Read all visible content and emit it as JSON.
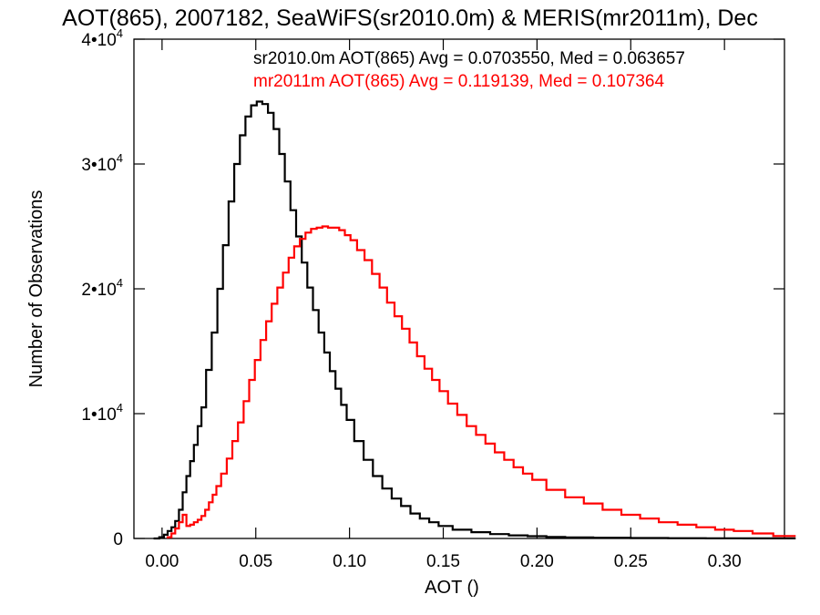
{
  "chart_data": {
    "type": "line",
    "title": "AOT(865), 2007182, SeaWiFS(sr2010.0m) & MERIS(mr2011m), Dec",
    "xlabel": "AOT ()",
    "ylabel": "Number of Observations",
    "xlim": [
      -0.015,
      0.332
    ],
    "ylim": [
      0,
      40000
    ],
    "x_ticks": [
      0.0,
      0.05,
      0.1,
      0.15,
      0.2,
      0.25,
      0.3
    ],
    "x_tick_labels": [
      "0.00",
      "0.05",
      "0.10",
      "0.15",
      "0.20",
      "0.25",
      "0.30"
    ],
    "y_ticks": [
      0,
      10000,
      20000,
      30000,
      40000
    ],
    "y_tick_labels": [
      {
        "base": "0",
        "exp": ""
      },
      {
        "base": "1•10",
        "exp": "4"
      },
      {
        "base": "2•10",
        "exp": "4"
      },
      {
        "base": "3•10",
        "exp": "4"
      },
      {
        "base": "4•10",
        "exp": "4"
      }
    ],
    "grid": false,
    "step": true,
    "series": [
      {
        "name": "sr2010.0m",
        "color": "#000000",
        "stat_label": "sr2010.0m AOT(865) Avg = 0.0703550, Med = 0.063657",
        "x": [
          -0.003,
          0.0,
          0.002,
          0.004,
          0.006,
          0.008,
          0.01,
          0.012,
          0.014,
          0.016,
          0.018,
          0.02,
          0.022,
          0.025,
          0.028,
          0.031,
          0.034,
          0.037,
          0.04,
          0.043,
          0.046,
          0.049,
          0.052,
          0.055,
          0.058,
          0.061,
          0.064,
          0.067,
          0.07,
          0.073,
          0.076,
          0.079,
          0.082,
          0.085,
          0.088,
          0.091,
          0.094,
          0.097,
          0.1,
          0.105,
          0.11,
          0.115,
          0.12,
          0.125,
          0.13,
          0.135,
          0.14,
          0.145,
          0.15,
          0.16,
          0.17,
          0.18,
          0.19,
          0.2,
          0.21,
          0.22,
          0.24,
          0.26,
          0.28,
          0.3,
          0.32,
          0.332
        ],
        "values": [
          0,
          100,
          300,
          600,
          900,
          1400,
          2300,
          3700,
          5000,
          6200,
          7500,
          9000,
          10500,
          13500,
          16500,
          20000,
          23500,
          27000,
          30000,
          32300,
          33800,
          34700,
          35000,
          34800,
          34100,
          32800,
          30800,
          28600,
          26300,
          24200,
          22100,
          20100,
          18300,
          16500,
          14900,
          13400,
          12000,
          10700,
          9500,
          7800,
          6300,
          5000,
          4000,
          3200,
          2600,
          2000,
          1600,
          1300,
          1000,
          700,
          500,
          350,
          250,
          180,
          120,
          90,
          60,
          40,
          25,
          15,
          10,
          5
        ]
      },
      {
        "name": "mr2011m",
        "color": "#ff0000",
        "stat_label": "mr2011m AOT(865) Avg = 0.119139, Med = 0.107364",
        "x": [
          0.004,
          0.006,
          0.008,
          0.01,
          0.012,
          0.014,
          0.016,
          0.018,
          0.02,
          0.022,
          0.024,
          0.026,
          0.028,
          0.03,
          0.033,
          0.036,
          0.039,
          0.042,
          0.045,
          0.048,
          0.051,
          0.054,
          0.057,
          0.06,
          0.063,
          0.066,
          0.069,
          0.072,
          0.075,
          0.078,
          0.081,
          0.084,
          0.087,
          0.09,
          0.093,
          0.096,
          0.099,
          0.102,
          0.106,
          0.11,
          0.114,
          0.118,
          0.122,
          0.126,
          0.13,
          0.134,
          0.138,
          0.142,
          0.146,
          0.15,
          0.155,
          0.16,
          0.165,
          0.17,
          0.175,
          0.18,
          0.185,
          0.19,
          0.195,
          0.2,
          0.21,
          0.22,
          0.23,
          0.24,
          0.25,
          0.26,
          0.27,
          0.28,
          0.29,
          0.3,
          0.31,
          0.32,
          0.332
        ],
        "values": [
          100,
          400,
          800,
          1300,
          1900,
          1000,
          1100,
          1300,
          1500,
          1800,
          2300,
          2900,
          3500,
          4200,
          5200,
          6400,
          7800,
          9300,
          11000,
          12700,
          14300,
          15900,
          17400,
          18800,
          20100,
          21300,
          22500,
          23400,
          24000,
          24500,
          24800,
          24900,
          25000,
          24900,
          24900,
          24700,
          24300,
          23900,
          23100,
          22300,
          21200,
          20100,
          18900,
          17800,
          16800,
          15700,
          14600,
          13600,
          12700,
          11800,
          10800,
          9900,
          9000,
          8300,
          7600,
          6900,
          6300,
          5700,
          5200,
          4700,
          3900,
          3300,
          2800,
          2300,
          1900,
          1600,
          1300,
          1100,
          900,
          700,
          600,
          400,
          200
        ]
      }
    ]
  }
}
